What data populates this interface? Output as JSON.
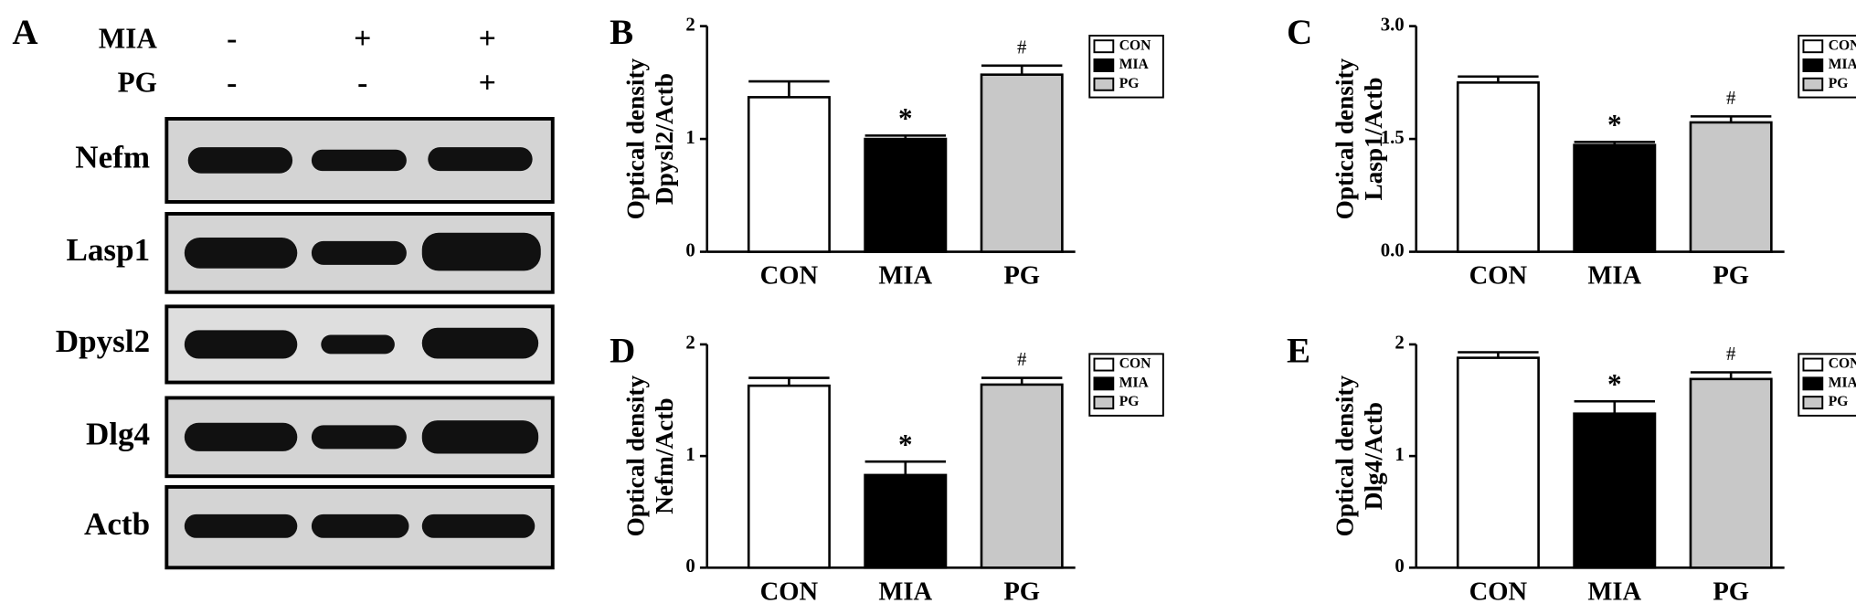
{
  "blot": {
    "panel": "A",
    "conditions": [
      {
        "name": "MIA",
        "signs": [
          "-",
          "+",
          "+"
        ]
      },
      {
        "name": "PG",
        "signs": [
          "-",
          "-",
          "+"
        ]
      }
    ],
    "proteins": [
      "Nefm",
      "Lasp1",
      "Dpysl2",
      "Dlg4",
      "Actb"
    ]
  },
  "chart_data": [
    {
      "type": "bar",
      "panel": "B",
      "ylabel": [
        "Optical density",
        "Dpysl2/Actb"
      ],
      "categories": [
        "CON",
        "MIA",
        "PG"
      ],
      "values": [
        1.37,
        1.0,
        1.57
      ],
      "errors": [
        0.14,
        0.03,
        0.08
      ],
      "colors": [
        "#ffffff",
        "#000000",
        "#c8c8c8"
      ],
      "markers": [
        null,
        "*",
        "#"
      ],
      "ylim": [
        0,
        2
      ],
      "yticks": [
        0,
        1,
        2
      ],
      "legend": "upper right"
    },
    {
      "type": "bar",
      "panel": "C",
      "ylabel": [
        "Optical density",
        "Lasp1/Actb"
      ],
      "categories": [
        "CON",
        "MIA",
        "PG"
      ],
      "values": [
        2.25,
        1.42,
        1.72
      ],
      "errors": [
        0.08,
        0.04,
        0.08
      ],
      "colors": [
        "#ffffff",
        "#000000",
        "#c8c8c8"
      ],
      "markers": [
        null,
        "*",
        "#"
      ],
      "ylim": [
        0,
        3
      ],
      "yticks": [
        {
          "value": 0,
          "label": "0.0"
        },
        1.5,
        {
          "value": 3,
          "label": "3.0"
        }
      ],
      "legend": "upper right"
    },
    {
      "type": "bar",
      "panel": "D",
      "ylabel": [
        "Optical density",
        "Nefm/Actb"
      ],
      "categories": [
        "CON",
        "MIA",
        "PG"
      ],
      "values": [
        1.63,
        0.83,
        1.64
      ],
      "errors": [
        0.07,
        0.12,
        0.06
      ],
      "colors": [
        "#ffffff",
        "#000000",
        "#c8c8c8"
      ],
      "markers": [
        null,
        "*",
        "#"
      ],
      "ylim": [
        0,
        2
      ],
      "yticks": [
        0,
        1,
        2
      ],
      "legend": "upper right"
    },
    {
      "type": "bar",
      "panel": "E",
      "ylabel": [
        "Optical density",
        "Dlg4/Actb"
      ],
      "categories": [
        "CON",
        "MIA",
        "PG"
      ],
      "values": [
        1.88,
        1.38,
        1.69
      ],
      "errors": [
        0.05,
        0.11,
        0.06
      ],
      "colors": [
        "#ffffff",
        "#000000",
        "#c8c8c8"
      ],
      "markers": [
        null,
        "*",
        "#"
      ],
      "ylim": [
        0,
        2
      ],
      "yticks": [
        0,
        1,
        2
      ],
      "legend": "upper right"
    }
  ]
}
